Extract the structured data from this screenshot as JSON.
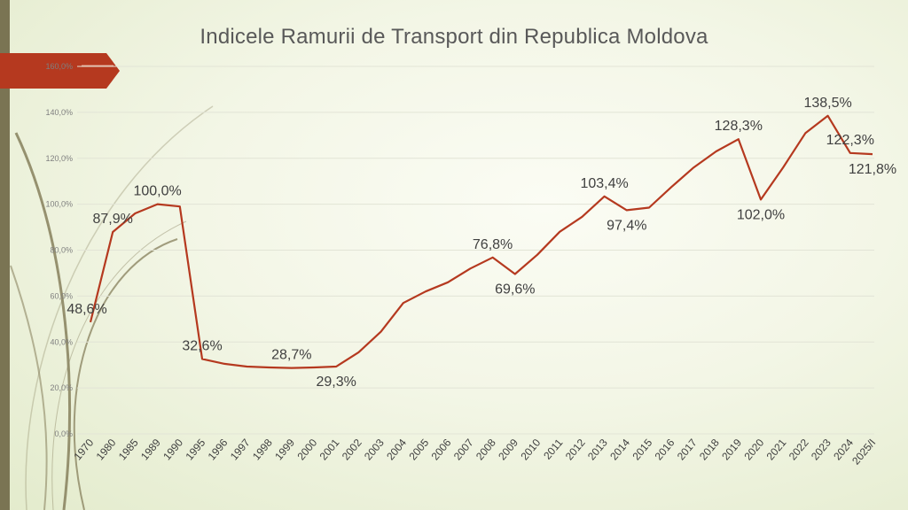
{
  "chart_data": {
    "type": "line",
    "title": "Indicele Ramurii de Transport din Republica Moldova",
    "xlabel": "",
    "ylabel": "",
    "ylim": [
      0,
      160
    ],
    "y_ticks": [
      "0,0%",
      "20,0%",
      "40,0%",
      "60,0%",
      "80,0%",
      "100,0%",
      "120,0%",
      "140,0%",
      "160,0%"
    ],
    "grid": true,
    "legend": "none",
    "line_color": "#b5391f",
    "categories": [
      "1970",
      "1980",
      "1985",
      "1989",
      "1990",
      "1995",
      "1996",
      "1997",
      "1998",
      "1999",
      "2000",
      "2001",
      "2002",
      "2003",
      "2004",
      "2005",
      "2006",
      "2007",
      "2008",
      "2009",
      "2010",
      "2011",
      "2012",
      "2013",
      "2014",
      "2015",
      "2016",
      "2017",
      "2018",
      "2019",
      "2020",
      "2021",
      "2022",
      "2023",
      "2024",
      "2025/I"
    ],
    "series": [
      {
        "values": [
          48.6,
          87.9,
          96.0,
          100.0,
          99.0,
          32.6,
          30.5,
          29.3,
          28.9,
          28.7,
          28.9,
          29.3,
          35.5,
          44.5,
          57.0,
          62.0,
          66.0,
          72.0,
          76.8,
          69.6,
          78.0,
          88.0,
          94.5,
          103.4,
          97.4,
          98.5,
          107.5,
          116.0,
          123.0,
          128.3,
          102.0,
          116.0,
          131.0,
          138.5,
          122.3,
          121.8
        ]
      }
    ],
    "data_labels": [
      {
        "index": 0,
        "text": "48,6%",
        "pos": "left"
      },
      {
        "index": 1,
        "text": "87,9%",
        "pos": "above"
      },
      {
        "index": 3,
        "text": "100,0%",
        "pos": "above"
      },
      {
        "index": 5,
        "text": "32,6%",
        "pos": "above"
      },
      {
        "index": 9,
        "text": "28,7%",
        "pos": "above"
      },
      {
        "index": 11,
        "text": "29,3%",
        "pos": "below"
      },
      {
        "index": 18,
        "text": "76,8%",
        "pos": "above"
      },
      {
        "index": 19,
        "text": "69,6%",
        "pos": "below"
      },
      {
        "index": 23,
        "text": "103,4%",
        "pos": "above"
      },
      {
        "index": 24,
        "text": "97,4%",
        "pos": "below"
      },
      {
        "index": 29,
        "text": "128,3%",
        "pos": "above"
      },
      {
        "index": 30,
        "text": "102,0%",
        "pos": "below"
      },
      {
        "index": 33,
        "text": "138,5%",
        "pos": "above"
      },
      {
        "index": 34,
        "text": "122,3%",
        "pos": "above"
      },
      {
        "index": 35,
        "text": "121,8%",
        "pos": "below"
      }
    ]
  },
  "theme": {
    "banner_color": "#b5391f",
    "left_bar_color": "#7a7453",
    "swoosh_color": "#8c8663"
  }
}
